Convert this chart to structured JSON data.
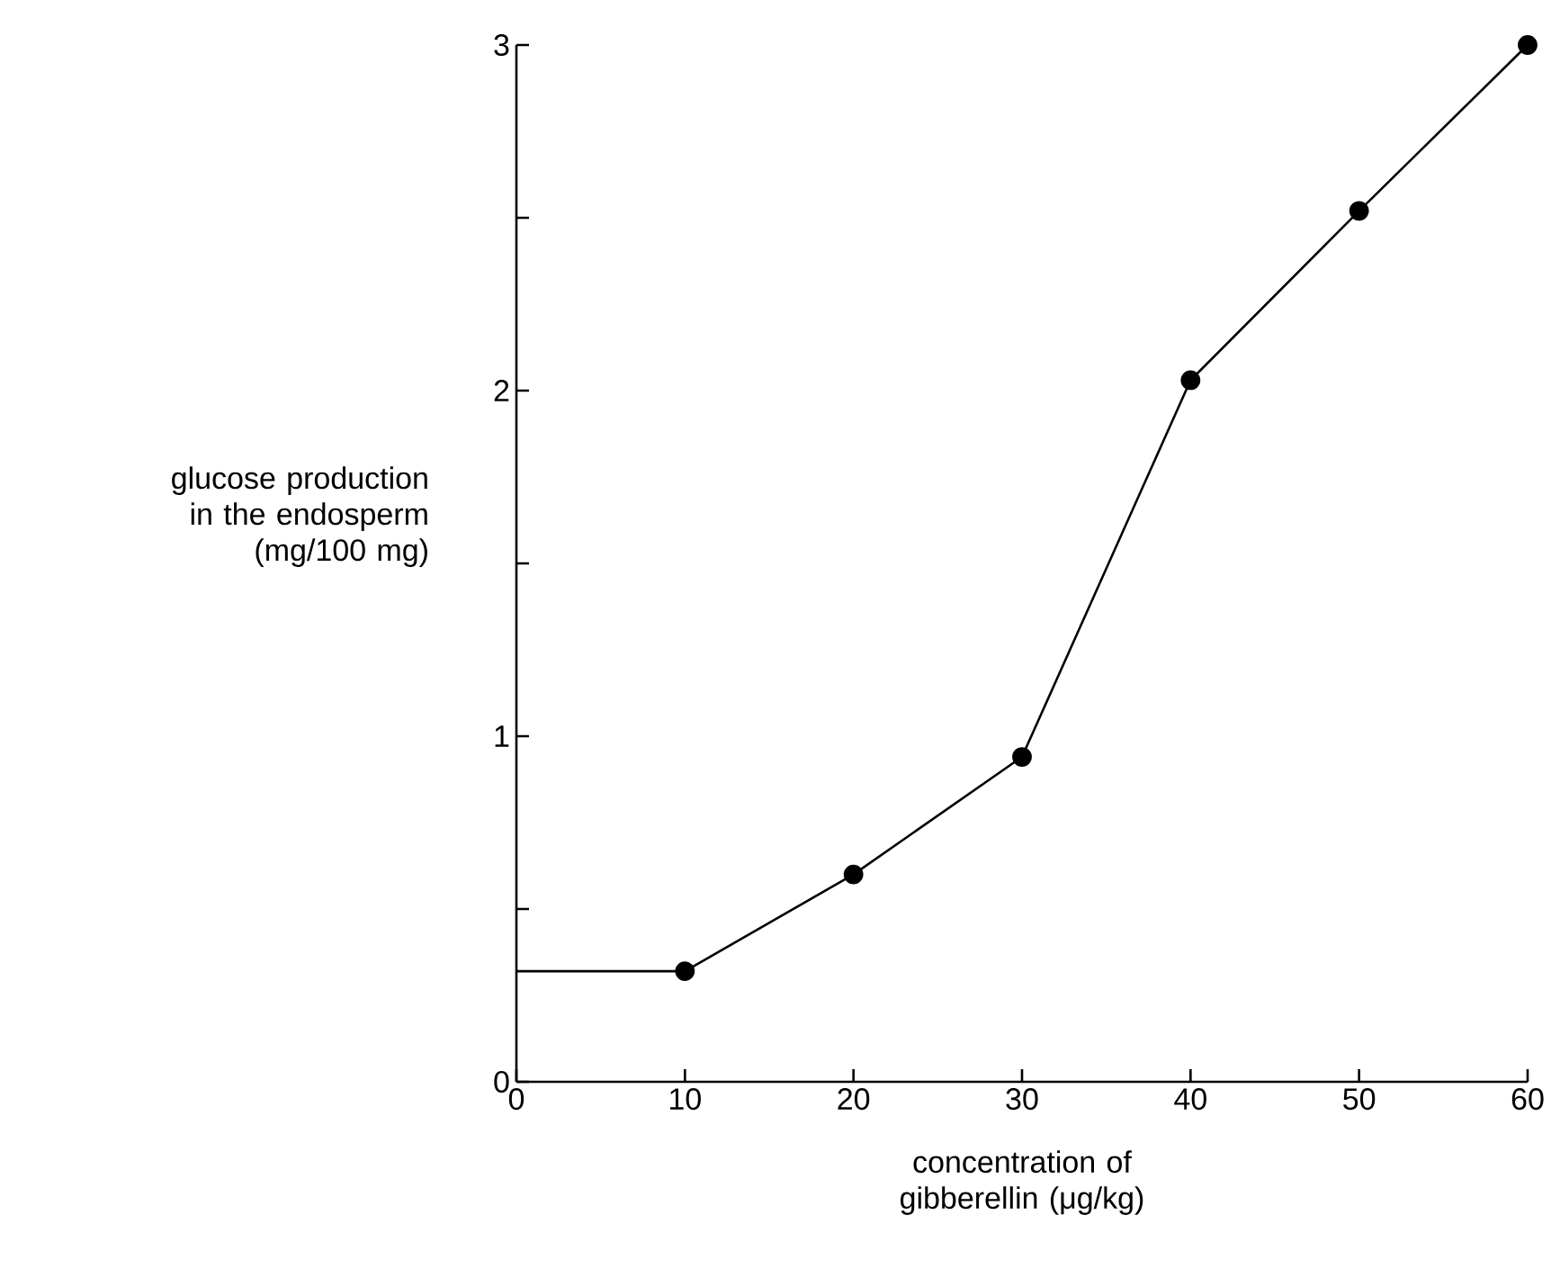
{
  "chart_data": {
    "type": "line",
    "xlabel": "concentration of gibberellin (μg/kg)",
    "ylabel": "glucose production in the endosperm (mg/100 mg)",
    "xlim": [
      0,
      60
    ],
    "ylim": [
      0,
      3
    ],
    "xticks": [
      0,
      10,
      20,
      30,
      40,
      50,
      60
    ],
    "yticks": [
      0,
      {
        "value": 0.5,
        "label": null
      },
      1,
      {
        "value": 1.5,
        "label": null
      },
      2,
      {
        "value": 2.5,
        "label": null
      },
      3
    ],
    "series": [
      {
        "type": "line",
        "color": "#000000",
        "x": [
          0,
          10
        ],
        "values": [
          0.32,
          0.32
        ]
      },
      {
        "type": "line",
        "color": "#000000",
        "marker": "circle",
        "x": [
          10,
          20,
          30,
          40,
          50,
          60
        ],
        "values": [
          0.32,
          0.6,
          0.94,
          2.03,
          2.52,
          3.0
        ]
      }
    ]
  }
}
